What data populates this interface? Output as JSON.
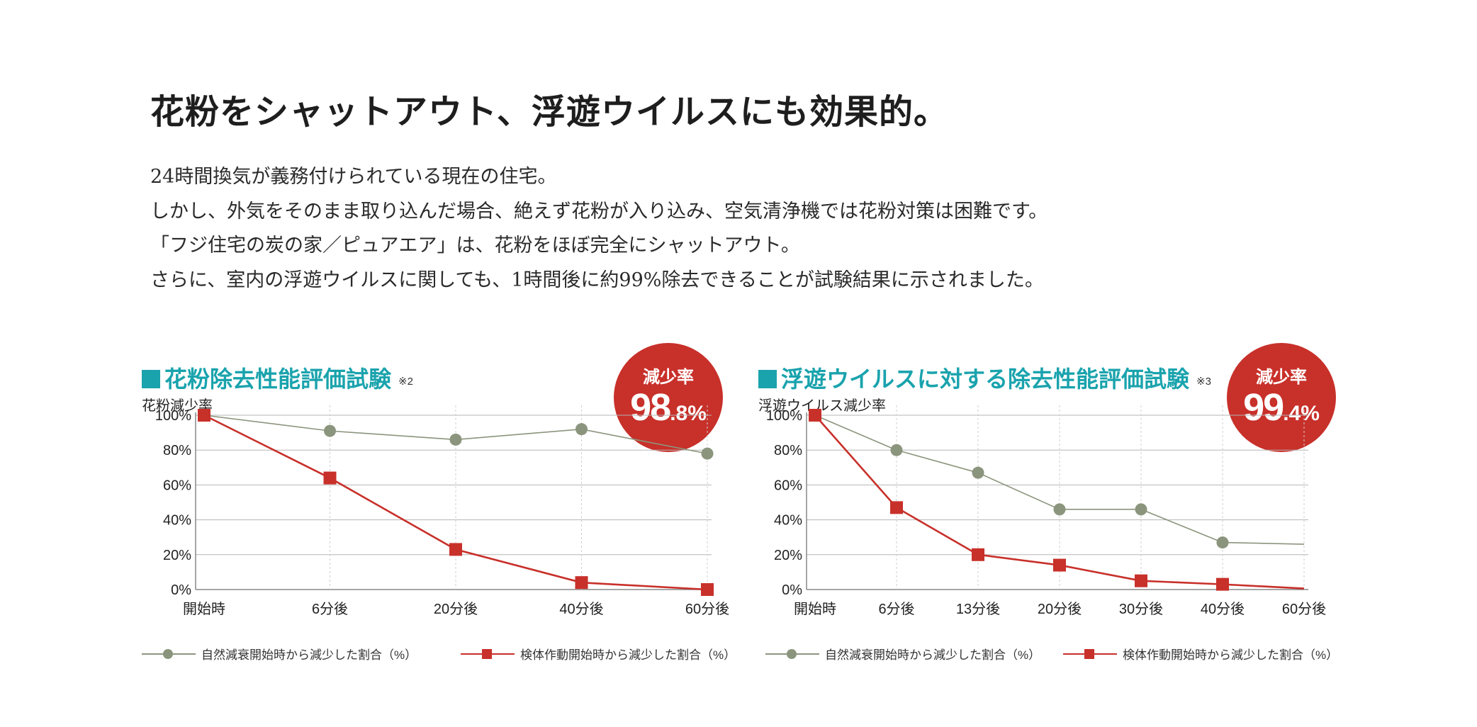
{
  "headline": "花粉をシャットアウト、浮遊ウイルスにも効果的。",
  "paragraphs": [
    "24時間換気が義務付けられている現在の住宅。",
    "しかし、外気をそのまま取り込んだ場合、絶えず花粉が入り込み、空気清浄機では花粉対策は困難です。",
    "「フジ住宅の炭の家／ピュアエア」は、花粉をほぼ完全にシャットアウト。",
    "さらに、室内の浮遊ウイルスに関しても、1時間後に約99%除去できることが試験結果に示されました。"
  ],
  "colors": {
    "accent_teal": "#1aa3ad",
    "natural_series": "#8b957d",
    "device_series": "#c8302a",
    "badge": "#c8302a"
  },
  "legend_icons": [
    "circle-marker",
    "square-marker"
  ],
  "panels": [
    {
      "title": "花粉除去性能評価試験",
      "note": "※2",
      "ylabel": "花粉減少率",
      "badge": {
        "title": "減少率",
        "value_big": "98",
        "value_small": ".8%"
      },
      "legend": [
        "自然減衰開始時から減少した割合（%）",
        "検体作動開始時から減少した割合（%）"
      ]
    },
    {
      "title": "浮遊ウイルスに対する除去性能評価試験",
      "note": "※3",
      "ylabel": "浮遊ウイルス減少率",
      "badge": {
        "title": "減少率",
        "value_big": "99",
        "value_small": ".4%"
      },
      "legend": [
        "自然減衰開始時から減少した割合（%）",
        "検体作動開始時から減少した割合（%）"
      ]
    }
  ],
  "chart_data": [
    {
      "type": "line",
      "title": "花粉除去性能評価試験",
      "ylabel": "花粉減少率",
      "xlabel": "",
      "categories": [
        "開始時",
        "6分後",
        "20分後",
        "40分後",
        "60分後"
      ],
      "x": [
        0,
        6,
        20,
        40,
        60
      ],
      "y_ticks": [
        "0%",
        "20%",
        "40%",
        "60%",
        "80%",
        "100%"
      ],
      "ylim": [
        0,
        100
      ],
      "grid": true,
      "series": [
        {
          "name": "自然減衰開始時から減少した割合（%）",
          "marker": "circle",
          "x": [
            0,
            6,
            20,
            40,
            60
          ],
          "values": [
            100,
            91,
            86,
            92,
            78
          ]
        },
        {
          "name": "検体作動開始時から減少した割合（%）",
          "marker": "square",
          "x": [
            0,
            6,
            20,
            40,
            60
          ],
          "values": [
            100,
            64,
            23,
            4,
            0
          ]
        }
      ]
    },
    {
      "type": "line",
      "title": "浮遊ウイルスに対する除去性能評価試験",
      "ylabel": "浮遊ウイルス減少率",
      "xlabel": "",
      "categories": [
        "開始時",
        "6分後",
        "13分後",
        "20分後",
        "30分後",
        "40分後",
        "60分後"
      ],
      "x": [
        0,
        6,
        13,
        20,
        30,
        40,
        60
      ],
      "y_ticks": [
        "0%",
        "20%",
        "40%",
        "60%",
        "80%",
        "100%"
      ],
      "ylim": [
        0,
        100
      ],
      "grid": true,
      "series": [
        {
          "name": "自然減衰開始時から減少した割合（%）",
          "marker": "circle",
          "x": [
            0,
            6,
            13,
            20,
            30,
            40,
            60
          ],
          "values": [
            100,
            80,
            67,
            46,
            46,
            27,
            26
          ]
        },
        {
          "name": "検体作動開始時から減少した割合（%）",
          "marker": "square",
          "x": [
            0,
            6,
            13,
            20,
            30,
            40,
            60
          ],
          "values": [
            100,
            47,
            20,
            14,
            5,
            3,
            0.6
          ]
        }
      ]
    }
  ]
}
